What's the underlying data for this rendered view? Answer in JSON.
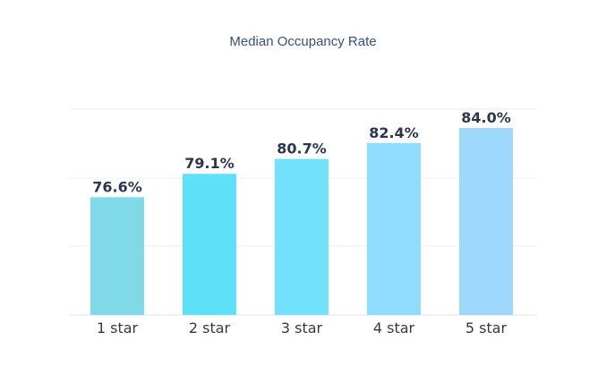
{
  "chart_data": {
    "type": "bar",
    "title": "Median Occupancy Rate",
    "categories": [
      "1 star",
      "2 star",
      "3 star",
      "4 star",
      "5 star"
    ],
    "values": [
      76.6,
      79.1,
      80.7,
      82.4,
      84.0
    ],
    "value_labels": [
      "76.6%",
      "79.1%",
      "80.7%",
      "82.4%",
      "84.0%"
    ],
    "bar_colors": [
      "#80d9e6",
      "#5fe0f9",
      "#72e2fc",
      "#8edcfe",
      "#9fd8fd"
    ],
    "grid": true,
    "legend": "none"
  }
}
